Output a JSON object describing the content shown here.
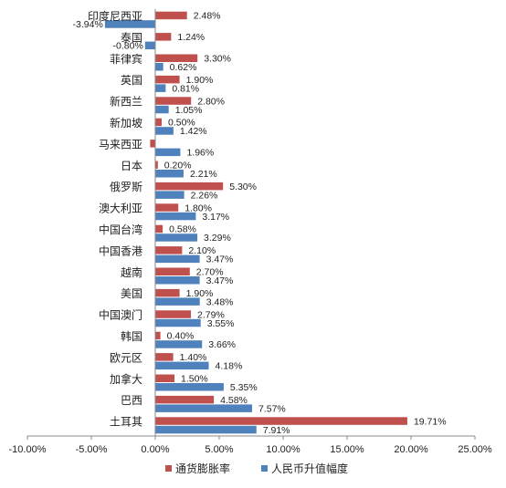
{
  "chart_data": {
    "type": "bar",
    "orientation": "horizontal",
    "categories": [
      "印度尼西亚",
      "泰国",
      "菲律宾",
      "英国",
      "新西兰",
      "新加坡",
      "马来西亚",
      "日本",
      "俄罗斯",
      "澳大利亚",
      "中国台湾",
      "中国香港",
      "越南",
      "美国",
      "中国澳门",
      "韩国",
      "欧元区",
      "加拿大",
      "巴西",
      "土耳其"
    ],
    "series": [
      {
        "name": "通货膨胀率",
        "color": "#c0504d",
        "values": [
          2.48,
          1.24,
          3.3,
          1.9,
          2.8,
          0.5,
          -0.4,
          0.2,
          5.3,
          1.8,
          0.58,
          2.1,
          2.7,
          1.9,
          2.79,
          0.4,
          1.4,
          1.5,
          4.58,
          19.71
        ],
        "labels": [
          "2.48%",
          "1.24%",
          "3.30%",
          "1.90%",
          "2.80%",
          "0.50%",
          "",
          "0.20%",
          "5.30%",
          "1.80%",
          "0.58%",
          "2.10%",
          "2.70%",
          "1.90%",
          "2.79%",
          "0.40%",
          "1.40%",
          "1.50%",
          "4.58%",
          "19.71%"
        ]
      },
      {
        "name": "人民币升值幅度",
        "color": "#4f81bd",
        "values": [
          -3.94,
          -0.8,
          0.62,
          0.81,
          1.05,
          1.42,
          1.96,
          2.21,
          2.26,
          3.17,
          3.29,
          3.47,
          3.47,
          3.48,
          3.55,
          3.66,
          4.18,
          5.35,
          7.57,
          7.91
        ],
        "labels": [
          "-3.94%",
          "-0.80%",
          "0.62%",
          "0.81%",
          "1.05%",
          "1.42%",
          "1.96%",
          "2.21%",
          "2.26%",
          "3.17%",
          "3.29%",
          "3.47%",
          "3.47%",
          "3.48%",
          "3.55%",
          "3.66%",
          "4.18%",
          "5.35%",
          "7.57%",
          "7.91%"
        ]
      }
    ],
    "xlim": [
      -10,
      25
    ],
    "xticks": [
      -10,
      -5,
      0,
      5,
      10,
      15,
      20,
      25
    ],
    "xtick_labels": [
      "-10.00%",
      "-5.00%",
      "0.00%",
      "5.00%",
      "10.00%",
      "15.00%",
      "20.00%",
      "25.00%"
    ],
    "grid": false,
    "legend_position": "bottom"
  }
}
